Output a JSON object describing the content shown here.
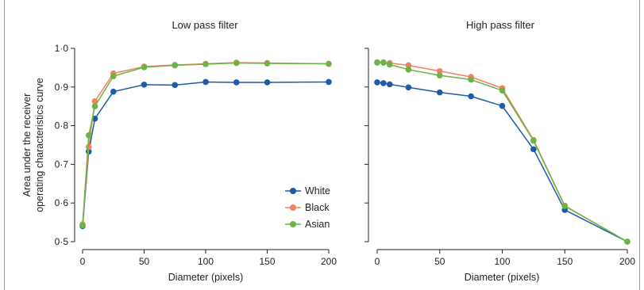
{
  "chart_data": [
    {
      "type": "line",
      "title": "Low pass filter",
      "xlabel": "Diameter (pixels)",
      "ylabel": "Area under the receiver operating characteristics curve",
      "xlim": [
        0,
        200
      ],
      "ylim": [
        0.5,
        1.0
      ],
      "xticks": [
        0,
        50,
        100,
        150,
        200
      ],
      "xtick_labels": [
        "0",
        "50",
        "100",
        "150",
        "200"
      ],
      "yticks": [
        0.5,
        0.6,
        0.7,
        0.8,
        0.9,
        1.0
      ],
      "ytick_labels": [
        "0·5",
        "0·6",
        "0·7",
        "0·8",
        "0·9",
        "1·0"
      ],
      "grid": false,
      "legend": "none",
      "x": [
        0,
        5,
        10,
        25,
        50,
        75,
        100,
        125,
        150,
        200
      ],
      "series": [
        {
          "name": "White",
          "color": "#1f5aa6",
          "values": [
            0.54,
            0.733,
            0.818,
            0.888,
            0.906,
            0.905,
            0.913,
            0.912,
            0.912,
            0.913
          ]
        },
        {
          "name": "Black",
          "color": "#f08261",
          "values": [
            0.545,
            0.745,
            0.863,
            0.935,
            0.953,
            0.957,
            0.96,
            0.963,
            0.962,
            0.96
          ]
        },
        {
          "name": "Asian",
          "color": "#6ab445",
          "values": [
            0.542,
            0.775,
            0.85,
            0.928,
            0.951,
            0.956,
            0.959,
            0.962,
            0.961,
            0.96
          ]
        }
      ]
    },
    {
      "type": "line",
      "title": "High pass filter",
      "xlabel": "Diameter (pixels)",
      "ylabel": "",
      "xlim": [
        0,
        200
      ],
      "ylim": [
        0.5,
        1.0
      ],
      "xticks": [
        0,
        50,
        100,
        150,
        200
      ],
      "xtick_labels": [
        "0",
        "50",
        "100",
        "150",
        "200"
      ],
      "yticks": [
        0.5,
        0.6,
        0.7,
        0.8,
        0.9,
        1.0
      ],
      "ytick_labels": [],
      "grid": false,
      "legend": "none",
      "x": [
        0,
        5,
        10,
        25,
        50,
        75,
        100,
        125,
        150,
        200
      ],
      "series": [
        {
          "name": "White",
          "color": "#1f5aa6",
          "values": [
            0.912,
            0.91,
            0.907,
            0.899,
            0.886,
            0.876,
            0.851,
            0.739,
            0.582,
            0.5
          ]
        },
        {
          "name": "Black",
          "color": "#f08261",
          "values": [
            0.964,
            0.964,
            0.962,
            0.956,
            0.941,
            0.926,
            0.897,
            0.763,
            0.593,
            0.5
          ]
        },
        {
          "name": "Asian",
          "color": "#6ab445",
          "values": [
            0.963,
            0.963,
            0.958,
            0.945,
            0.93,
            0.919,
            0.891,
            0.761,
            0.592,
            0.5
          ]
        }
      ]
    }
  ],
  "legend": {
    "placement": "lower-right of left panel",
    "entries": [
      {
        "label": "White",
        "color": "#1f5aa6"
      },
      {
        "label": "Black",
        "color": "#f08261"
      },
      {
        "label": "Asian",
        "color": "#6ab445"
      }
    ]
  },
  "colors": {
    "frame_border": "#e07a63",
    "axis": "#222222"
  }
}
